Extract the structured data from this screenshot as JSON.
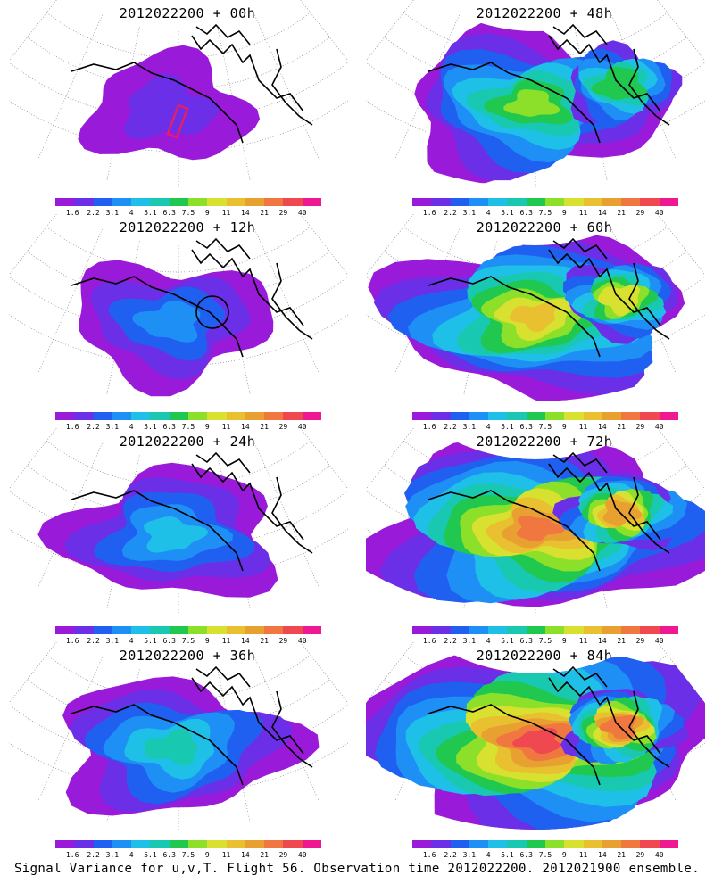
{
  "panels": [
    {
      "title": "2012022200 + 00h",
      "intensity": 0.15,
      "marker": "rect"
    },
    {
      "title": "2012022200 + 48h",
      "intensity": 0.55,
      "marker": "none"
    },
    {
      "title": "2012022200 + 12h",
      "intensity": 0.3,
      "marker": "circle"
    },
    {
      "title": "2012022200 + 60h",
      "intensity": 0.7,
      "marker": "none"
    },
    {
      "title": "2012022200 + 24h",
      "intensity": 0.38,
      "marker": "none"
    },
    {
      "title": "2012022200 + 72h",
      "intensity": 0.85,
      "marker": "none"
    },
    {
      "title": "2012022200 + 36h",
      "intensity": 0.45,
      "marker": "none"
    },
    {
      "title": "2012022200 + 84h",
      "intensity": 0.95,
      "marker": "none"
    }
  ],
  "colorbar": {
    "labels": [
      "1.6",
      "2.2",
      "3.1",
      "4",
      "5.1",
      "6.3",
      "7.5",
      "9",
      "11",
      "14",
      "21",
      "29",
      "40"
    ],
    "colors": [
      "#9a1ad9",
      "#6a2fe6",
      "#2060f0",
      "#1e90f5",
      "#1ec0e8",
      "#18c8b0",
      "#20c850",
      "#8ce02a",
      "#d8e030",
      "#e8c030",
      "#e8a030",
      "#f07840",
      "#f04850",
      "#f01890"
    ]
  },
  "footer": "Signal Variance for u,v,T. Flight 56. Observation time 2012022200. 2012021900 ensemble."
}
